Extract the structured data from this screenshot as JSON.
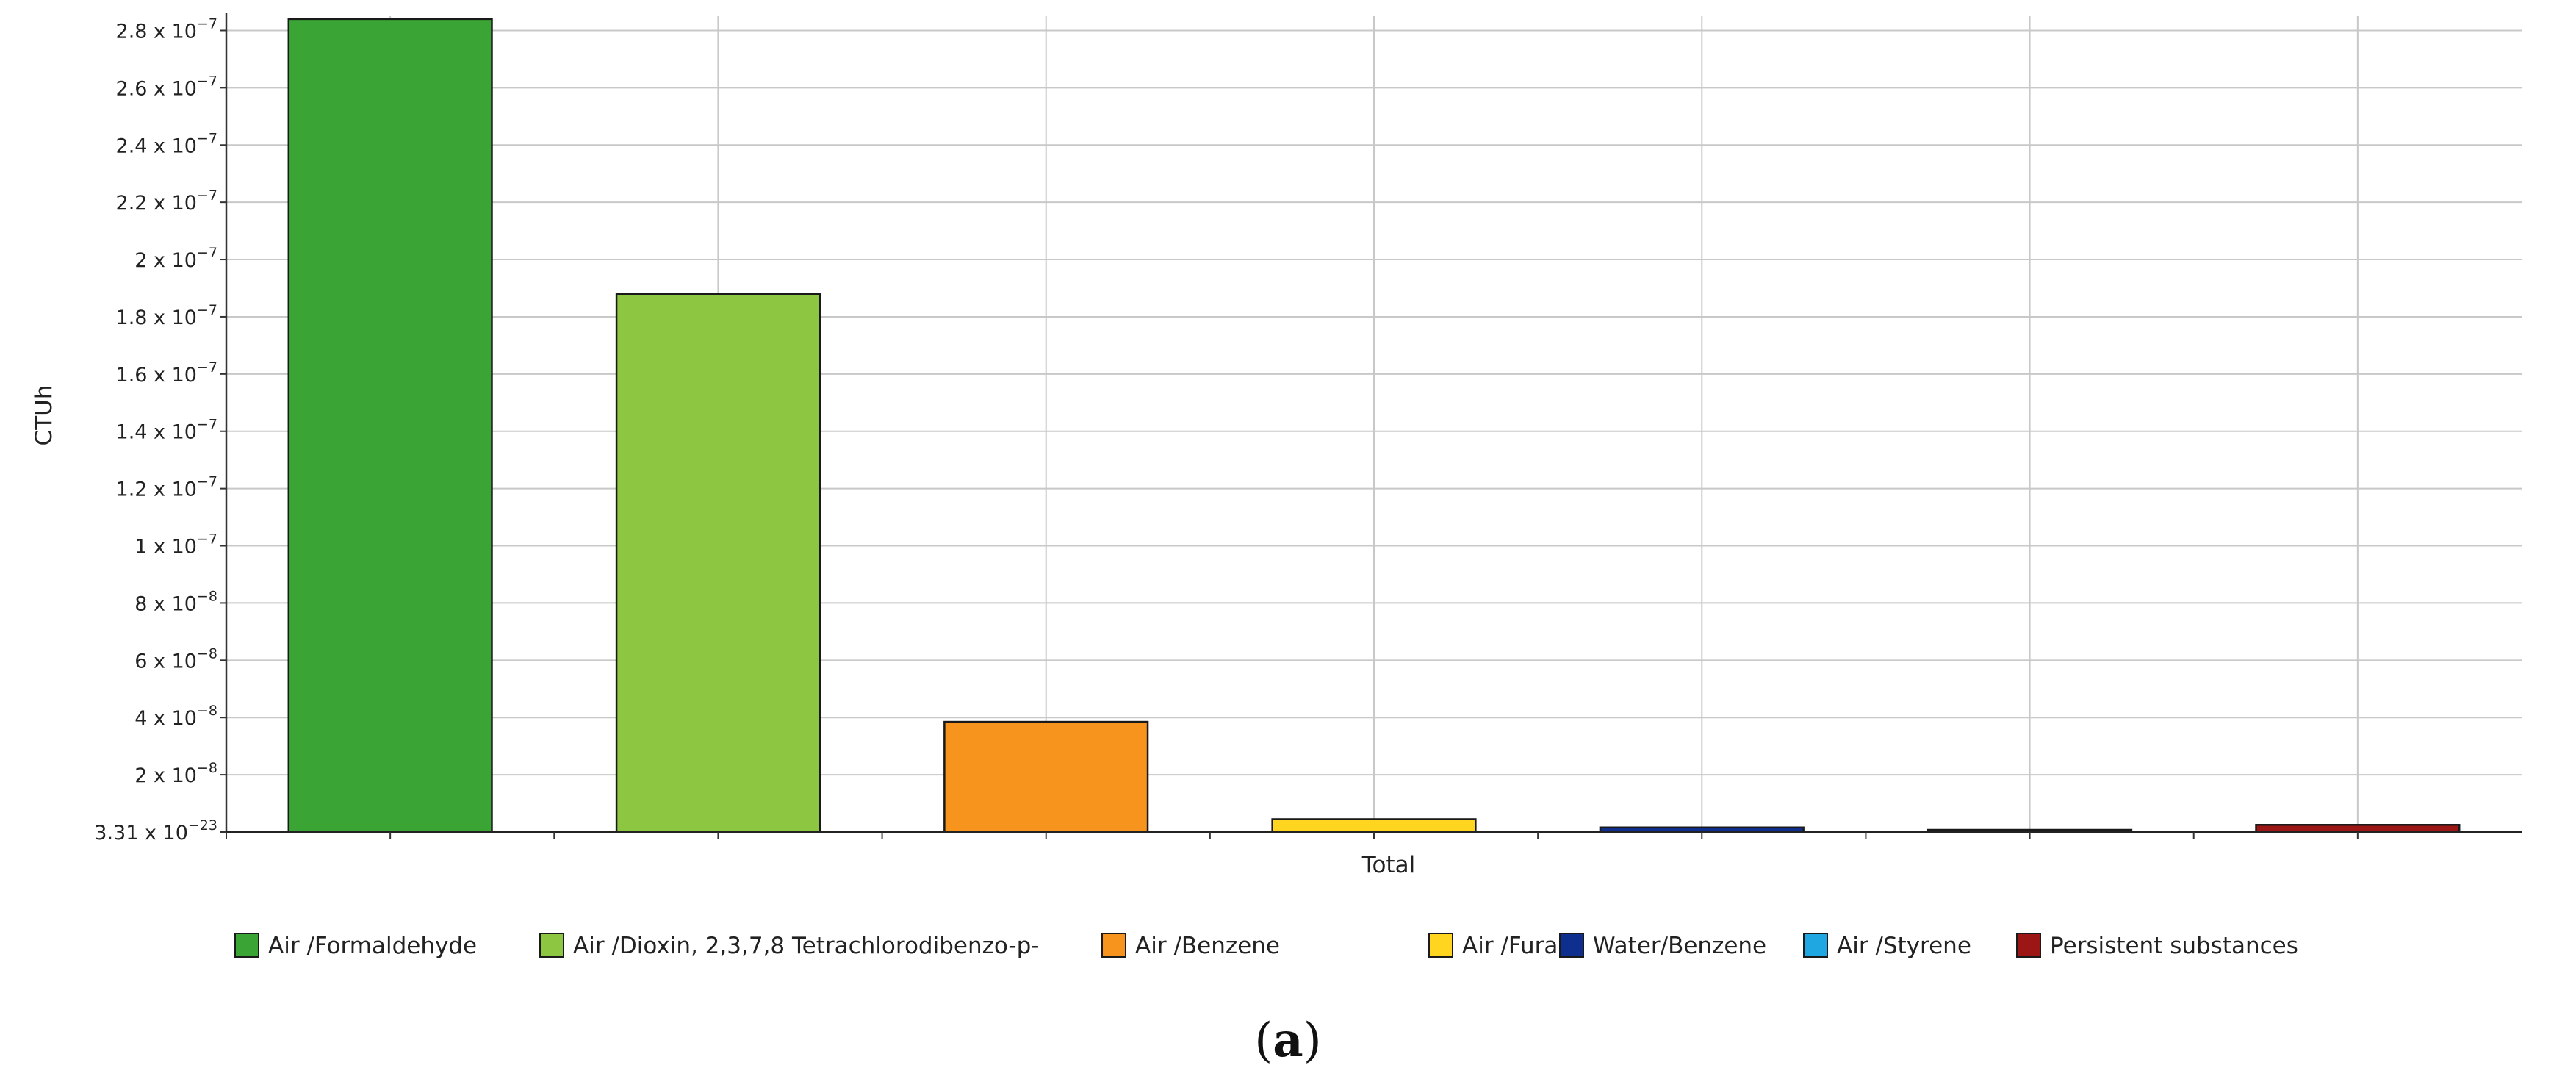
{
  "chart_data": {
    "type": "bar",
    "categories": [
      "Total"
    ],
    "xlabel": "Total",
    "ylabel": "CTUh",
    "ylim": [
      0,
      2.85e-07
    ],
    "grid": true,
    "legend_placement": "bottom",
    "y_ticks": [
      {
        "value": 0,
        "mantissa": "3.31",
        "exponent": "−23"
      },
      {
        "value": 2e-08,
        "mantissa": "2",
        "exponent": "−8"
      },
      {
        "value": 4e-08,
        "mantissa": "4",
        "exponent": "−8"
      },
      {
        "value": 6e-08,
        "mantissa": "6",
        "exponent": "−8"
      },
      {
        "value": 8e-08,
        "mantissa": "8",
        "exponent": "−8"
      },
      {
        "value": 1e-07,
        "mantissa": "1",
        "exponent": "−7"
      },
      {
        "value": 1.2e-07,
        "mantissa": "1.2",
        "exponent": "−7"
      },
      {
        "value": 1.4e-07,
        "mantissa": "1.4",
        "exponent": "−7"
      },
      {
        "value": 1.6e-07,
        "mantissa": "1.6",
        "exponent": "−7"
      },
      {
        "value": 1.8e-07,
        "mantissa": "1.8",
        "exponent": "−7"
      },
      {
        "value": 2e-07,
        "mantissa": "2",
        "exponent": "−7"
      },
      {
        "value": 2.2e-07,
        "mantissa": "2.2",
        "exponent": "−7"
      },
      {
        "value": 2.4e-07,
        "mantissa": "2.4",
        "exponent": "−7"
      },
      {
        "value": 2.6e-07,
        "mantissa": "2.6",
        "exponent": "−7"
      },
      {
        "value": 2.8e-07,
        "mantissa": "2.8",
        "exponent": "−7"
      }
    ],
    "series": [
      {
        "name": "Air /Formaldehyde",
        "values": [
          2.84e-07
        ],
        "color": "#3aa535"
      },
      {
        "name": "Air /Dioxin, 2,3,7,8 Tetrachlorodibenzo-p-",
        "values": [
          1.88e-07
        ],
        "color": "#8dc641"
      },
      {
        "name": "Air /Benzene",
        "values": [
          3.85e-08
        ],
        "color": "#f7941d"
      },
      {
        "name": "Air /Furan",
        "values": [
          4.5e-09
        ],
        "color": "#ffd51f"
      },
      {
        "name": "Water/Benzene",
        "values": [
          1.6e-09
        ],
        "color": "#0f2f8f"
      },
      {
        "name": "Air /Styrene",
        "values": [
          5e-10
        ],
        "color": "#1ea7e1"
      },
      {
        "name": "Persistent substances",
        "values": [
          2.5e-09
        ],
        "color": "#9b1614"
      }
    ]
  },
  "caption": "a"
}
